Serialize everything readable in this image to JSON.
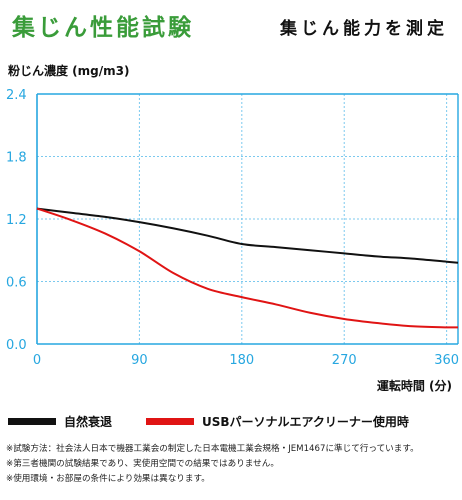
{
  "header": {
    "title": "集じん性能試験",
    "subtitle": "集じん能力を測定"
  },
  "colors": {
    "title_green": "#3a9c3a",
    "axis_blue": "#27a7e0",
    "grid_blue": "#7cc9ee",
    "series_natural": "#111111",
    "series_usb": "#e01414"
  },
  "chart_data": {
    "type": "line",
    "ylabel": "粉じん濃度 (mg/m3)",
    "xlabel": "運転時間 (分)",
    "xlim": [
      0,
      370
    ],
    "ylim": [
      0,
      2.4
    ],
    "x_ticks": [
      "0",
      "90",
      "180",
      "270",
      "360"
    ],
    "y_ticks": [
      "0.0",
      "0.6",
      "1.2",
      "1.8",
      "2.4"
    ],
    "grid": true,
    "legend_position": "bottom",
    "series": [
      {
        "name": "自然衰退",
        "color": "#111111",
        "x": [
          0,
          30,
          60,
          90,
          120,
          150,
          180,
          210,
          240,
          270,
          300,
          330,
          360,
          370
        ],
        "y": [
          1.3,
          1.26,
          1.22,
          1.17,
          1.11,
          1.04,
          0.96,
          0.93,
          0.9,
          0.87,
          0.84,
          0.82,
          0.79,
          0.78
        ]
      },
      {
        "name": "USBパーソナルエアクリーナー使用時",
        "color": "#e01414",
        "x": [
          0,
          30,
          60,
          90,
          120,
          150,
          180,
          210,
          240,
          270,
          300,
          330,
          360,
          370
        ],
        "y": [
          1.3,
          1.19,
          1.06,
          0.89,
          0.68,
          0.53,
          0.45,
          0.38,
          0.3,
          0.24,
          0.2,
          0.17,
          0.16,
          0.16
        ]
      }
    ]
  },
  "notes": [
    "※試験方法：社会法人日本で機器工業会の制定した日本電機工業会規格・JEM1467に準じて行っています。",
    "※第三者機関の試験結果であり、実使用空間での結果ではありません。",
    "※使用環境・お部屋の条件により効果は異なります。"
  ]
}
